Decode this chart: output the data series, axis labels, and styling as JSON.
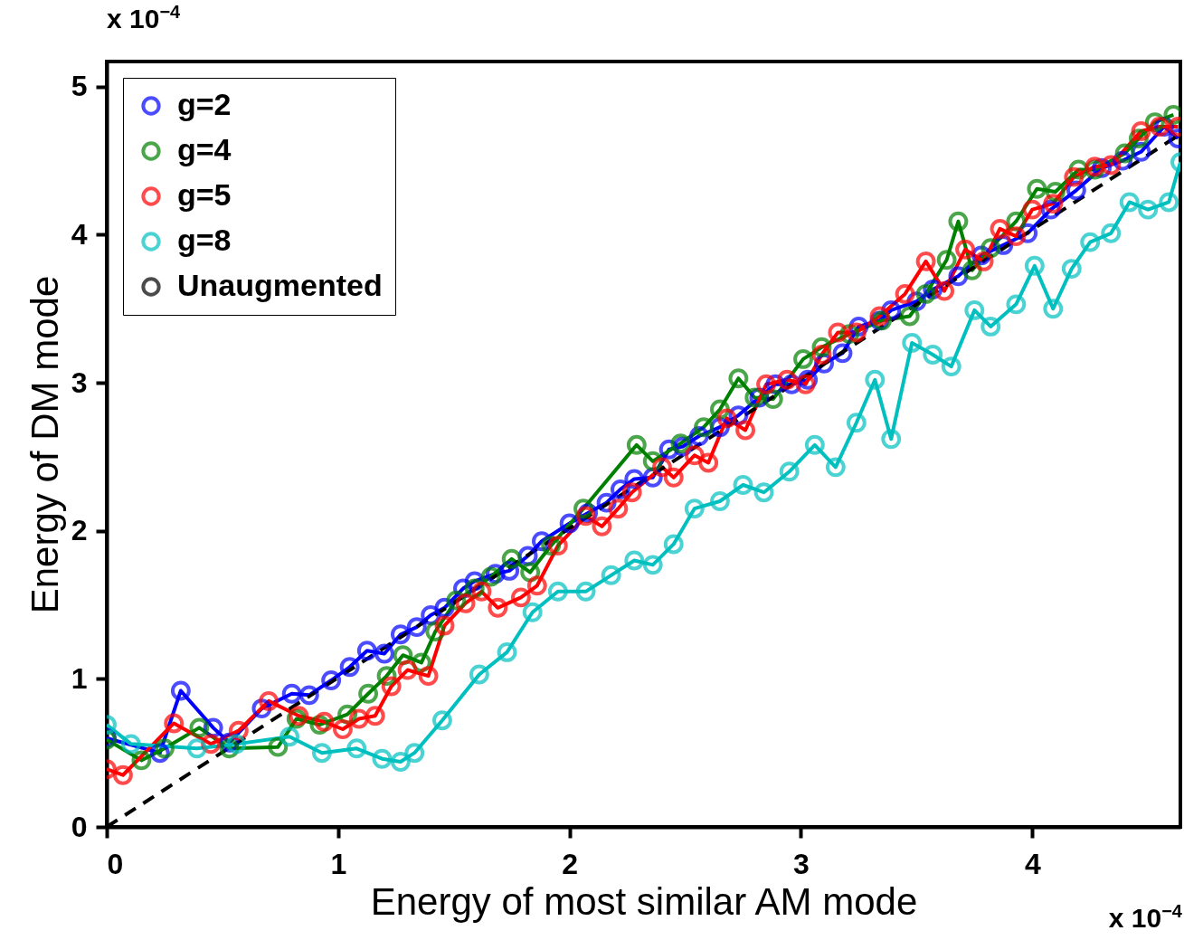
{
  "chart_data": {
    "type": "line",
    "xlabel": "Energy of most similar AM mode",
    "ylabel": "Energy of DM mode",
    "annotations": [
      "x 10$^{−4}$",
      "x 10$^{−4}$"
    ],
    "xlim": [
      0,
      4.64
    ],
    "ylim": [
      0,
      5.17
    ],
    "xticks": [
      0,
      1,
      2,
      3,
      4
    ],
    "yticks": [
      0,
      1,
      2,
      3,
      4,
      5
    ],
    "grid": false,
    "legend": "top left",
    "series": [
      {
        "name": "g=2",
        "color": "#0000ff",
        "marker": "circle",
        "line_style": "solid",
        "x": [
          0,
          0.23,
          0.32,
          0.46,
          0.53,
          0.67,
          0.8,
          0.875,
          0.97,
          1.05,
          1.125,
          1.2,
          1.27,
          1.34,
          1.4,
          1.46,
          1.54,
          1.59,
          1.68,
          1.74,
          1.82,
          1.88,
          2.0,
          2.08,
          2.16,
          2.22,
          2.28,
          2.36,
          2.43,
          2.49,
          2.56,
          2.65,
          2.73,
          2.82,
          2.89,
          2.96,
          3.03,
          3.1,
          3.18,
          3.25,
          3.34,
          3.39,
          3.5,
          3.57,
          3.68,
          3.78,
          3.875,
          3.98,
          4.08,
          4.19,
          4.3,
          4.39,
          4.47,
          4.57,
          4.63
        ],
        "values": [
          0.6,
          0.5,
          0.92,
          0.67,
          0.57,
          0.8,
          0.9,
          0.89,
          0.99,
          1.08,
          1.19,
          1.17,
          1.3,
          1.35,
          1.43,
          1.48,
          1.61,
          1.66,
          1.71,
          1.73,
          1.83,
          1.93,
          2.05,
          2.12,
          2.19,
          2.28,
          2.35,
          2.36,
          2.55,
          2.57,
          2.64,
          2.7,
          2.78,
          2.9,
          2.99,
          2.99,
          3.02,
          3.13,
          3.2,
          3.38,
          3.42,
          3.49,
          3.55,
          3.63,
          3.72,
          3.86,
          3.93,
          4.01,
          4.17,
          4.3,
          4.45,
          4.5,
          4.56,
          4.73,
          4.65
        ]
      },
      {
        "name": "g=4",
        "color": "#008000",
        "marker": "circle",
        "line_style": "solid",
        "x": [
          0,
          0.15,
          0.25,
          0.4,
          0.53,
          0.74,
          0.82,
          0.92,
          1.04,
          1.13,
          1.21,
          1.28,
          1.36,
          1.42,
          1.51,
          1.59,
          1.66,
          1.75,
          1.83,
          1.92,
          2.06,
          2.29,
          2.36,
          2.48,
          2.58,
          2.65,
          2.73,
          2.8,
          2.88,
          3.01,
          3.09,
          3.21,
          3.35,
          3.47,
          3.54,
          3.63,
          3.68,
          3.74,
          3.82,
          3.93,
          4.02,
          4.1,
          4.2,
          4.27,
          4.4,
          4.46,
          4.53,
          4.61
        ],
        "values": [
          0.59,
          0.45,
          0.53,
          0.67,
          0.53,
          0.54,
          0.73,
          0.69,
          0.76,
          0.9,
          1.02,
          1.16,
          1.11,
          1.32,
          1.53,
          1.61,
          1.69,
          1.81,
          1.72,
          1.9,
          2.15,
          2.58,
          2.47,
          2.59,
          2.7,
          2.82,
          3.03,
          2.9,
          2.89,
          3.16,
          3.24,
          3.33,
          3.42,
          3.45,
          3.6,
          3.83,
          4.09,
          3.76,
          3.91,
          4.09,
          4.31,
          4.29,
          4.44,
          4.44,
          4.55,
          4.65,
          4.76,
          4.81
        ]
      },
      {
        "name": "g=5",
        "color": "#ff0000",
        "marker": "circle",
        "line_style": "solid",
        "x": [
          0,
          0.07,
          0.29,
          0.45,
          0.57,
          0.7,
          0.83,
          0.94,
          1.02,
          1.09,
          1.16,
          1.23,
          1.3,
          1.39,
          1.46,
          1.55,
          1.62,
          1.69,
          1.79,
          1.86,
          1.95,
          2.07,
          2.14,
          2.21,
          2.27,
          2.4,
          2.45,
          2.54,
          2.6,
          2.68,
          2.76,
          2.85,
          2.94,
          3.02,
          3.09,
          3.16,
          3.24,
          3.34,
          3.45,
          3.54,
          3.62,
          3.71,
          3.79,
          3.86,
          3.93,
          4.0,
          4.09,
          4.18,
          4.27,
          4.34,
          4.47,
          4.55,
          4.63
        ],
        "values": [
          0.39,
          0.35,
          0.7,
          0.56,
          0.65,
          0.85,
          0.75,
          0.71,
          0.66,
          0.73,
          0.75,
          0.95,
          1.06,
          1.02,
          1.36,
          1.51,
          1.59,
          1.48,
          1.55,
          1.63,
          1.9,
          2.1,
          2.03,
          2.15,
          2.26,
          2.43,
          2.36,
          2.51,
          2.46,
          2.76,
          2.68,
          2.99,
          3.02,
          2.99,
          3.19,
          3.34,
          3.34,
          3.45,
          3.6,
          3.82,
          3.62,
          3.9,
          3.82,
          4.04,
          3.99,
          4.17,
          4.21,
          4.39,
          4.46,
          4.47,
          4.7,
          4.73,
          4.73
        ]
      },
      {
        "name": "g=8",
        "color": "#00bfbf",
        "marker": "circle",
        "line_style": "solid",
        "x": [
          0,
          0.105,
          0.39,
          0.56,
          0.79,
          0.93,
          1.08,
          1.19,
          1.27,
          1.33,
          1.45,
          1.61,
          1.73,
          1.84,
          1.95,
          2.07,
          2.18,
          2.28,
          2.36,
          2.45,
          2.54,
          2.65,
          2.75,
          2.84,
          2.95,
          3.06,
          3.15,
          3.24,
          3.32,
          3.39,
          3.48,
          3.57,
          3.65,
          3.75,
          3.82,
          3.93,
          4.01,
          4.09,
          4.17,
          4.25,
          4.34,
          4.42,
          4.5,
          4.59,
          4.64
        ],
        "values": [
          0.69,
          0.56,
          0.53,
          0.56,
          0.61,
          0.5,
          0.53,
          0.46,
          0.44,
          0.5,
          0.72,
          1.03,
          1.18,
          1.45,
          1.59,
          1.59,
          1.7,
          1.8,
          1.77,
          1.91,
          2.15,
          2.2,
          2.31,
          2.26,
          2.4,
          2.58,
          2.43,
          2.73,
          3.02,
          2.62,
          3.27,
          3.19,
          3.11,
          3.49,
          3.38,
          3.53,
          3.79,
          3.5,
          3.77,
          3.95,
          4.01,
          4.22,
          4.17,
          4.22,
          4.49
        ]
      },
      {
        "name": "Unaugmented",
        "color": "#000000",
        "marker": "none",
        "line_style": "dashed",
        "x": [
          0,
          4.64
        ],
        "values": [
          0,
          4.68
        ]
      }
    ]
  }
}
